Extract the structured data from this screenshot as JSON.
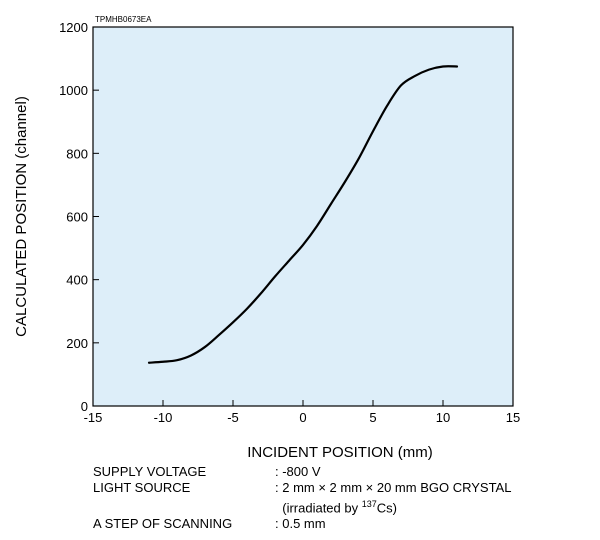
{
  "figure_code": "TPMHB0673EA",
  "chart_data": {
    "type": "line",
    "title": "",
    "xlabel": "INCIDENT POSITION (mm)",
    "ylabel": "CALCULATED POSITION (channel)",
    "xlim": [
      -15,
      15
    ],
    "ylim": [
      0,
      1200
    ],
    "xticks": [
      "-15",
      "-10",
      "-5",
      "0",
      "5",
      "10",
      "15"
    ],
    "yticks": [
      "0",
      "200",
      "400",
      "600",
      "800",
      "1000",
      "1200"
    ],
    "grid": false,
    "legend": "none",
    "plot_background": "#DDEEF9",
    "series": [
      {
        "color": "#000000",
        "x": [
          -11,
          -10,
          -9,
          -8,
          -7,
          -6,
          -5,
          -4,
          -3,
          -2,
          -1,
          0,
          1,
          2,
          3,
          4,
          5,
          6,
          7,
          8,
          9,
          10,
          11
        ],
        "y": [
          137,
          140,
          145,
          160,
          187,
          225,
          265,
          308,
          357,
          410,
          460,
          510,
          570,
          640,
          710,
          785,
          870,
          950,
          1015,
          1045,
          1065,
          1075,
          1075
        ]
      }
    ]
  },
  "conditions": [
    {
      "label": "SUPPLY VOLTAGE",
      "value": ": -800 V"
    },
    {
      "label": "LIGHT SOURCE",
      "value": ": 2 mm × 2 mm × 20 mm BGO CRYSTAL"
    },
    {
      "label": "",
      "value_prefix": "(irradiated by ",
      "value_sup": "137",
      "value_suffix": "Cs)"
    },
    {
      "label": "A STEP OF SCANNING",
      "value": ": 0.5 mm"
    }
  ]
}
